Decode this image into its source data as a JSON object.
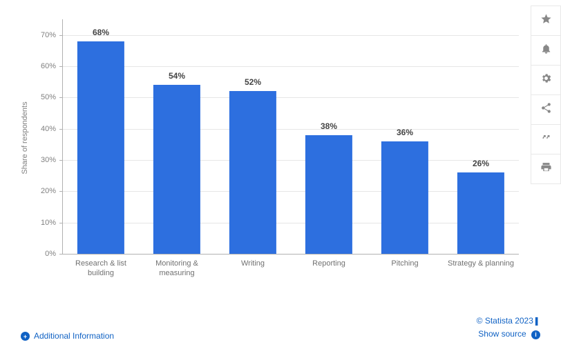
{
  "chart": {
    "type": "bar",
    "y_axis_title": "Share of respondents",
    "ylim": [
      0,
      75
    ],
    "ytick_step": 10,
    "ytick_labels": [
      "0%",
      "10%",
      "20%",
      "30%",
      "40%",
      "50%",
      "60%",
      "70%"
    ],
    "bar_color": "#2d6fdf",
    "bar_width_ratio": 0.62,
    "grid_color": "#e6e6e6",
    "axis_color": "#b0b0b0",
    "label_fontsize": 12,
    "tick_fontsize": 11,
    "tick_color": "#808080",
    "xlabel_color": "#707070",
    "categories": [
      "Research & list building",
      "Monitoring & measuring",
      "Writing",
      "Reporting",
      "Pitching",
      "Strategy & planning"
    ],
    "values": [
      68,
      54,
      52,
      38,
      36,
      26
    ],
    "value_labels": [
      "68%",
      "54%",
      "52%",
      "38%",
      "36%",
      "26%"
    ]
  },
  "toolbar": {
    "items": [
      {
        "name": "favorite-icon"
      },
      {
        "name": "notify-icon"
      },
      {
        "name": "settings-icon"
      },
      {
        "name": "share-icon"
      },
      {
        "name": "cite-icon"
      },
      {
        "name": "print-icon"
      }
    ]
  },
  "footer": {
    "additional_info": "Additional Information",
    "copyright": "© Statista 2023",
    "show_source": "Show source"
  },
  "colors": {
    "link": "#1062c4",
    "background": "#ffffff"
  }
}
